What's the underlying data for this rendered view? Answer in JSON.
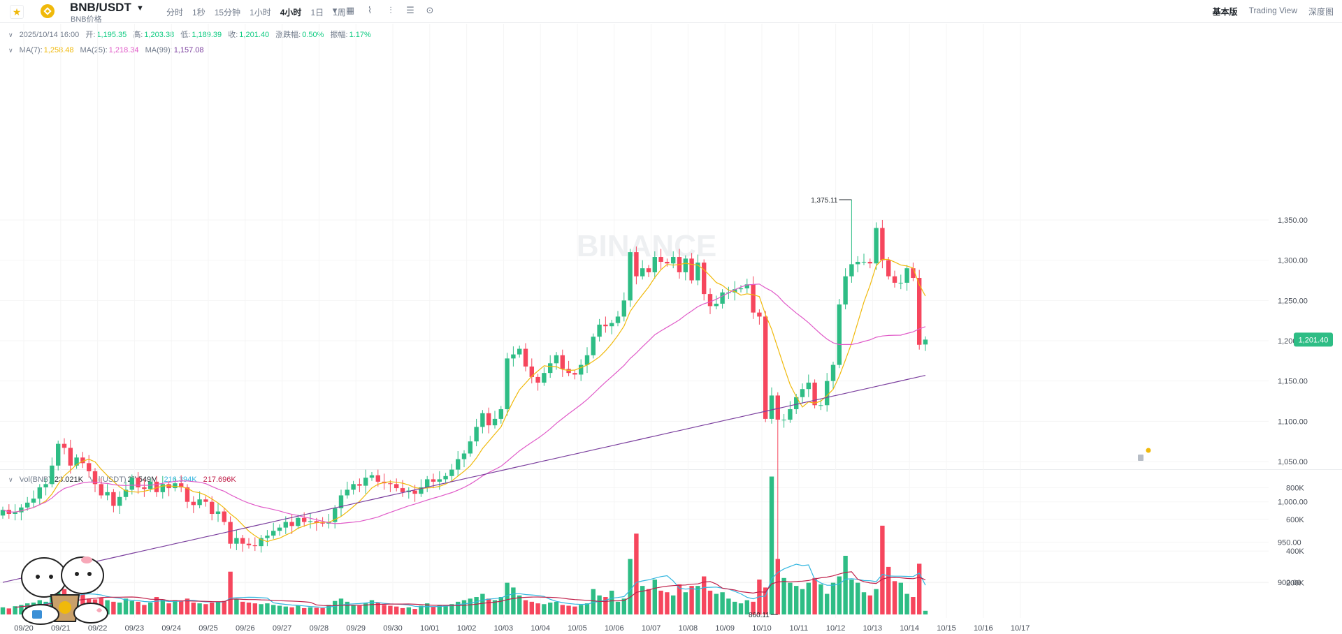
{
  "header": {
    "pair": "BNB/USDT",
    "subtitle": "BNB价格",
    "intervals": [
      "分时",
      "1秒",
      "15分钟",
      "1小时",
      "4小时",
      "1日",
      "1周"
    ],
    "active_interval": "4小时",
    "views": [
      "基本版",
      "Trading View",
      "深度图"
    ],
    "active_view": "基本版"
  },
  "ohlc_legend": {
    "datetime": "2025/10/14 16:00",
    "open_label": "开:",
    "open": "1,195.35",
    "high_label": "高:",
    "high": "1,203.38",
    "low_label": "低:",
    "low": "1,189.39",
    "close_label": "收:",
    "close": "1,201.40",
    "change_label": "涨跌幅:",
    "change": "0.50%",
    "amplitude_label": "振幅:",
    "amplitude": "1.17%"
  },
  "ma_legend": {
    "ma7_label": "MA(7):",
    "ma7": "1,258.48",
    "ma25_label": "MA(25):",
    "ma25": "1,218.34",
    "ma99_label": "MA(99):",
    "ma99": "1,157.08"
  },
  "vol_legend": {
    "vol_bnb_label": "Vol(BNB):",
    "vol_bnb": "23.021K",
    "vol_usdt_label": "Vol(USDT)",
    "vol_usdt": "27.549M",
    "vol_ma1": "216.394K",
    "vol_ma2": "217.696K"
  },
  "watermark": "BINANCE",
  "colors": {
    "up": "#2ebd85",
    "down": "#f6465d",
    "ma7": "#f0b90b",
    "ma25": "#e05ac8",
    "ma99": "#7b3f9e",
    "vma1": "#32b6e0",
    "vma2": "#c0204a"
  },
  "chart_data": {
    "type": "candlestick",
    "price_axis": {
      "ticks": [
        900,
        950,
        1000,
        1050,
        1100,
        1150,
        1200,
        1250,
        1300,
        1350
      ],
      "tick_labels": [
        "900.00",
        "950.00",
        "1,000.00",
        "1,050.00",
        "1,100.00",
        "1,150.00",
        "1,200.00",
        "1,250.00",
        "1,300.00",
        "1,350.00"
      ]
    },
    "volume_axis": {
      "ticks": [
        200000,
        400000,
        600000,
        800000
      ],
      "tick_labels": [
        "200K",
        "400K",
        "600K",
        "800K"
      ]
    },
    "x_labels": [
      "09/20",
      "09/21",
      "09/22",
      "09/23",
      "09/24",
      "09/25",
      "09/26",
      "09/27",
      "09/28",
      "09/29",
      "09/30",
      "10/01",
      "10/02",
      "10/03",
      "10/04",
      "10/05",
      "10/06",
      "10/07",
      "10/08",
      "10/09",
      "10/10",
      "10/11",
      "10/12",
      "10/13",
      "10/14",
      "10/15",
      "10/16",
      "10/17"
    ],
    "current_price": 1201.4,
    "current_price_label": "1,201.40",
    "max_marker": {
      "value": 1375.11,
      "label": "1,375.11"
    },
    "min_marker": {
      "value": 860.11,
      "label": "860.11"
    },
    "closes": [
      990,
      985,
      987,
      993,
      999,
      1004,
      1018,
      1022,
      1045,
      1072,
      1067,
      1045,
      1055,
      1048,
      1038,
      1022,
      1008,
      1012,
      995,
      1006,
      1015,
      1030,
      1018,
      1016,
      1025,
      1012,
      1022,
      1017,
      1023,
      1018,
      1000,
      996,
      1003,
      1000,
      985,
      988,
      975,
      948,
      955,
      948,
      946,
      945,
      955,
      958,
      964,
      968,
      975,
      970,
      980,
      975,
      976,
      974,
      973,
      975,
      992,
      1008,
      1015,
      1022,
      1020,
      1030,
      1033,
      1025,
      1023,
      1022,
      1017,
      1012,
      1014,
      1010,
      1018,
      1028,
      1025,
      1028,
      1032,
      1040,
      1053,
      1060,
      1075,
      1093,
      1110,
      1095,
      1103,
      1115,
      1178,
      1183,
      1190,
      1168,
      1155,
      1148,
      1160,
      1172,
      1182,
      1165,
      1160,
      1158,
      1170,
      1182,
      1205,
      1220,
      1218,
      1222,
      1230,
      1250,
      1310,
      1280,
      1290,
      1285,
      1304,
      1298,
      1296,
      1304,
      1285,
      1302,
      1275,
      1297,
      1258,
      1243,
      1246,
      1260,
      1260,
      1264,
      1265,
      1270,
      1235,
      1230,
      1103,
      1132,
      1102,
      1102,
      1115,
      1130,
      1140,
      1148,
      1120,
      1120,
      1150,
      1170,
      1245,
      1280,
      1295,
      1298,
      1298,
      1296,
      1340,
      1300,
      1280,
      1272,
      1272,
      1290,
      1278,
      1195,
      1201.4
    ],
    "opens": [
      983,
      990,
      985,
      987,
      993,
      999,
      1004,
      1018,
      1022,
      1045,
      1072,
      1067,
      1045,
      1055,
      1048,
      1038,
      1022,
      1008,
      1012,
      995,
      1006,
      1015,
      1030,
      1018,
      1016,
      1025,
      1012,
      1022,
      1017,
      1023,
      1018,
      1000,
      996,
      1003,
      1000,
      985,
      988,
      975,
      948,
      955,
      948,
      946,
      945,
      955,
      958,
      964,
      968,
      975,
      970,
      980,
      975,
      976,
      974,
      973,
      975,
      992,
      1008,
      1015,
      1022,
      1020,
      1030,
      1033,
      1025,
      1023,
      1022,
      1017,
      1012,
      1014,
      1010,
      1018,
      1028,
      1025,
      1028,
      1032,
      1040,
      1053,
      1060,
      1075,
      1093,
      1110,
      1095,
      1103,
      1115,
      1178,
      1183,
      1190,
      1168,
      1155,
      1148,
      1160,
      1172,
      1182,
      1165,
      1160,
      1158,
      1170,
      1182,
      1205,
      1220,
      1218,
      1222,
      1230,
      1250,
      1310,
      1280,
      1290,
      1285,
      1304,
      1298,
      1296,
      1304,
      1285,
      1302,
      1275,
      1297,
      1258,
      1243,
      1246,
      1260,
      1260,
      1264,
      1265,
      1270,
      1235,
      1230,
      1103,
      1132,
      1102,
      1102,
      1115,
      1130,
      1140,
      1148,
      1120,
      1120,
      1150,
      1170,
      1245,
      1280,
      1295,
      1298,
      1298,
      1296,
      1340,
      1300,
      1280,
      1272,
      1272,
      1290,
      1278,
      1195.35
    ],
    "volumes": [
      45000,
      38000,
      52000,
      60000,
      70000,
      75000,
      90000,
      80000,
      110000,
      140000,
      160000,
      120000,
      110000,
      170000,
      100000,
      95000,
      105000,
      90000,
      80000,
      75000,
      100000,
      85000,
      80000,
      60000,
      75000,
      110000,
      95000,
      70000,
      90000,
      85000,
      100000,
      75000,
      70000,
      65000,
      75000,
      80000,
      85000,
      270000,
      95000,
      80000,
      75000,
      70000,
      65000,
      70000,
      60000,
      55000,
      50000,
      45000,
      55000,
      40000,
      45000,
      42000,
      40000,
      60000,
      85000,
      100000,
      80000,
      60000,
      55000,
      70000,
      90000,
      75000,
      60000,
      55000,
      50000,
      40000,
      45000,
      35000,
      55000,
      70000,
      50000,
      60000,
      55000,
      65000,
      80000,
      90000,
      100000,
      110000,
      130000,
      100000,
      90000,
      110000,
      200000,
      170000,
      120000,
      90000,
      80000,
      70000,
      65000,
      75000,
      80000,
      60000,
      55000,
      50000,
      60000,
      70000,
      160000,
      120000,
      110000,
      150000,
      80000,
      100000,
      350000,
      510000,
      180000,
      160000,
      220000,
      150000,
      140000,
      120000,
      190000,
      140000,
      180000,
      180000,
      240000,
      150000,
      130000,
      140000,
      100000,
      80000,
      70000,
      90000,
      80000,
      220000,
      170000,
      870000,
      350000,
      230000,
      200000,
      180000,
      160000,
      200000,
      230000,
      190000,
      130000,
      200000,
      240000,
      370000,
      220000,
      200000,
      140000,
      120000,
      160000,
      560000,
      300000,
      210000,
      200000,
      130000,
      110000,
      320000,
      23021
    ]
  }
}
